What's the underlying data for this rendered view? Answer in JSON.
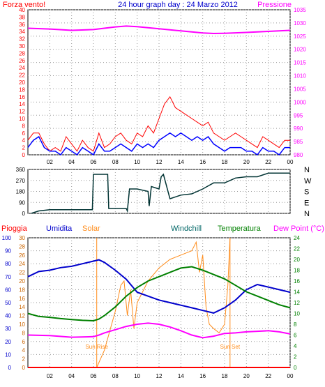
{
  "header": {
    "title": "24 hour graph day : 24 Marzo 2012",
    "left_label": "Forza vento!",
    "right_label": "Pressione"
  },
  "colors": {
    "wind": "#ff0000",
    "wind_avg": "#0000ff",
    "pressure": "#ff00ff",
    "direction": "#003333",
    "rain": "#ff0000",
    "humidity": "#0000cc",
    "solar": "#ff8c1a",
    "windchill": "#006666",
    "temperature": "#008000",
    "dewpoint": "#ff00ff",
    "grid": "#999999"
  },
  "x_ticks": [
    "02",
    "04",
    "06",
    "08",
    "10",
    "12",
    "14",
    "16",
    "18",
    "20",
    "22",
    "00"
  ],
  "chart_data": [
    {
      "type": "line",
      "panel": "wind_pressure",
      "left_axis": {
        "label": "Forza vento!",
        "ticks": [
          0,
          2,
          4,
          6,
          8,
          10,
          12,
          14,
          16,
          18,
          20,
          22,
          24,
          26,
          28,
          30,
          32,
          34,
          36,
          38,
          40
        ],
        "ylim": [
          0,
          40
        ]
      },
      "right_axis": {
        "label": "Pressione",
        "ticks": [
          980,
          985,
          990,
          995,
          1000,
          1005,
          1010,
          1015,
          1020,
          1025,
          1030,
          1035
        ],
        "ylim": [
          980,
          1035
        ]
      },
      "x_hours": [
        0,
        24
      ],
      "series": [
        {
          "name": "Forza vento!",
          "key": "gust",
          "hours": [
            0,
            0.5,
            1,
            1.5,
            2,
            2.5,
            3,
            3.5,
            4,
            4.5,
            5,
            5.5,
            6,
            6.5,
            7,
            7.5,
            8,
            8.5,
            9,
            9.5,
            10,
            10.5,
            11,
            11.5,
            12,
            12.5,
            13,
            13.5,
            14,
            14.5,
            15,
            15.5,
            16,
            16.5,
            17,
            17.5,
            18,
            18.5,
            19,
            19.5,
            20,
            20.5,
            21,
            21.5,
            22,
            22.5,
            23,
            23.5,
            24
          ],
          "values": [
            4,
            6,
            6,
            3,
            1,
            2,
            1,
            5,
            3,
            1,
            4,
            2,
            1,
            6,
            2,
            3,
            5,
            6,
            4,
            3,
            6,
            5,
            8,
            6,
            10,
            14,
            16,
            13,
            12,
            11,
            10,
            9,
            8,
            9,
            6,
            5,
            4,
            5,
            6,
            5,
            4,
            3,
            2,
            5,
            4,
            3,
            2,
            4,
            4
          ]
        },
        {
          "name": "",
          "key": "avg",
          "hours": [
            0,
            0.5,
            1,
            1.5,
            2,
            2.5,
            3,
            3.5,
            4,
            4.5,
            5,
            5.5,
            6,
            6.5,
            7,
            7.5,
            8,
            8.5,
            9,
            9.5,
            10,
            10.5,
            11,
            11.5,
            12,
            12.5,
            13,
            13.5,
            14,
            14.5,
            15,
            15.5,
            16,
            16.5,
            17,
            17.5,
            18,
            18.5,
            19,
            19.5,
            20,
            20.5,
            21,
            21.5,
            22,
            22.5,
            23,
            23.5,
            24
          ],
          "values": [
            2,
            4,
            5,
            2,
            1,
            1,
            0,
            2,
            1,
            0,
            2,
            1,
            0,
            3,
            1,
            1,
            2,
            3,
            2,
            1,
            3,
            2,
            3,
            2,
            4,
            5,
            6,
            5,
            6,
            5,
            4,
            5,
            4,
            5,
            3,
            2,
            1,
            2,
            2,
            2,
            1,
            1,
            0,
            2,
            1,
            1,
            0,
            2,
            2
          ]
        },
        {
          "name": "Pressione",
          "key": "pressure",
          "hours": [
            0,
            2,
            4,
            6,
            8,
            9,
            10,
            12,
            14,
            16,
            17,
            18,
            20,
            22,
            24
          ],
          "values": [
            1028.0,
            1027.7,
            1027.2,
            1027.5,
            1028.5,
            1028.8,
            1028.6,
            1027.8,
            1027.0,
            1026.2,
            1026.0,
            1026.1,
            1026.4,
            1026.8,
            1027.2
          ]
        }
      ]
    },
    {
      "type": "line",
      "panel": "direction",
      "left_axis": {
        "ticks": [
          0,
          90,
          180,
          270,
          360
        ],
        "ylim": [
          0,
          360
        ]
      },
      "right_axis": {
        "ticks": [
          "N",
          "W",
          "S",
          "E",
          "N"
        ]
      },
      "x_hours": [
        0,
        24
      ],
      "series": [
        {
          "key": "direction",
          "hours": [
            0.3,
            1,
            2,
            3,
            4,
            5,
            5.9,
            6,
            7.3,
            7.4,
            8,
            9,
            9.1,
            9.3,
            10,
            11,
            11.1,
            11.3,
            12,
            12.2,
            12.4,
            13,
            14,
            15,
            16,
            16.4,
            17,
            18,
            19,
            20,
            21,
            22,
            23,
            24
          ],
          "values": [
            0,
            20,
            30,
            30,
            30,
            30,
            30,
            320,
            320,
            40,
            40,
            40,
            20,
            200,
            200,
            180,
            60,
            220,
            200,
            300,
            320,
            120,
            150,
            160,
            200,
            220,
            250,
            250,
            290,
            300,
            300,
            330,
            330,
            330
          ]
        }
      ]
    },
    {
      "type": "line",
      "panel": "temp_humidity",
      "legend": [
        "Pioggia",
        "Umidita",
        "Solar",
        "Windchill",
        "Temperatura",
        "Dew Point (°C)"
      ],
      "left_axis_rain": {
        "ticks": [
          0,
          10,
          20,
          30,
          40,
          50,
          60,
          70,
          80,
          90,
          100
        ],
        "ylim": [
          0,
          100
        ]
      },
      "left_axis_temp": {
        "ticks": [
          0,
          2,
          4,
          6,
          8,
          10,
          12,
          14,
          16,
          18,
          20,
          22,
          24,
          26,
          28,
          30
        ],
        "ylim": [
          0,
          30
        ]
      },
      "right_axis": {
        "ticks": [
          0,
          2,
          4,
          6,
          8,
          10,
          12,
          14,
          16,
          18,
          20,
          22,
          24
        ],
        "ylim": [
          0,
          24
        ]
      },
      "annotations": [
        {
          "label": "Sun Rise",
          "hour": 6.3
        },
        {
          "label": "Sun Set",
          "hour": 18.5
        }
      ],
      "x_hours": [
        0,
        24
      ],
      "series": [
        {
          "name": "Umidita",
          "key": "humidity",
          "hours": [
            0,
            1,
            2,
            3,
            4,
            5,
            6,
            6.5,
            7,
            8,
            9,
            10,
            11,
            12,
            13,
            14,
            15,
            16,
            17,
            18,
            19,
            20,
            21,
            22,
            23,
            24
          ],
          "values": [
            70,
            74,
            75,
            77,
            78,
            80,
            82,
            83,
            81,
            75,
            68,
            58,
            55,
            52,
            50,
            48,
            46,
            44,
            42,
            46,
            52,
            60,
            64,
            62,
            60,
            58
          ]
        },
        {
          "name": "Temperatura",
          "key": "temperature",
          "hours": [
            0,
            1,
            2,
            3,
            4,
            5,
            6,
            6.5,
            7,
            8,
            9,
            10,
            11,
            12,
            13,
            14,
            15,
            16,
            17,
            18,
            19,
            20,
            21,
            22,
            23,
            24
          ],
          "values": [
            12.5,
            11.8,
            11.6,
            11.3,
            11.1,
            10.9,
            10.8,
            11.2,
            12.0,
            14.0,
            16.5,
            18.5,
            20.0,
            21.0,
            22.0,
            23.0,
            23.3,
            22.5,
            21.5,
            20.5,
            19.0,
            17.5,
            16.5,
            15.5,
            14.5,
            13.8
          ]
        },
        {
          "name": "Dew Point (°C)",
          "key": "dewpoint",
          "hours": [
            0,
            2,
            4,
            6,
            6.5,
            7,
            8,
            9,
            10,
            11,
            12,
            13,
            14,
            15,
            16,
            17,
            18,
            19,
            20,
            21,
            22,
            23,
            24
          ],
          "values": [
            6.0,
            5.9,
            5.6,
            5.7,
            6.0,
            6.4,
            7.0,
            7.6,
            8.0,
            8.2,
            8.0,
            7.5,
            6.8,
            6.0,
            5.5,
            5.8,
            6.3,
            6.4,
            6.6,
            6.7,
            6.8,
            6.6,
            6.2
          ]
        },
        {
          "name": "Solar",
          "key": "solar",
          "hours": [
            6.3,
            7,
            8,
            8.5,
            8.8,
            9.1,
            9.4,
            9.7,
            10,
            11,
            12,
            13,
            14,
            15,
            15.4,
            15.7,
            16,
            16.3,
            16.6,
            17,
            17.5,
            18,
            18.3,
            18.5
          ],
          "values": [
            0,
            4,
            13,
            19,
            20,
            12,
            18,
            9,
            15,
            20,
            23,
            25,
            26,
            27,
            29,
            22,
            26,
            14,
            10,
            9,
            8,
            10,
            19,
            30
          ]
        },
        {
          "name": "Pioggia",
          "key": "rain",
          "hours": [
            0,
            24
          ],
          "values": [
            0,
            0
          ]
        }
      ]
    }
  ]
}
